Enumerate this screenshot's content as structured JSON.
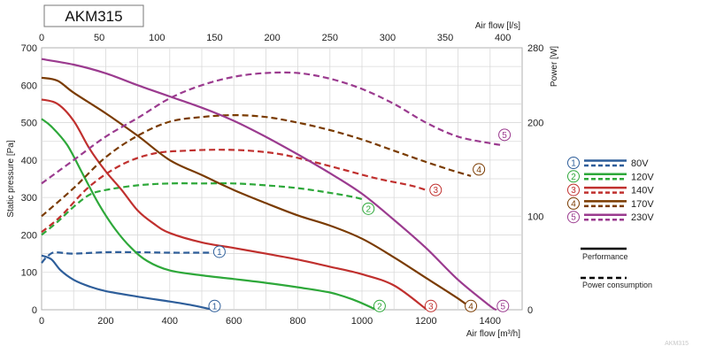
{
  "chart_data": {
    "type": "line",
    "title": "AKM315",
    "watermark": "AKM315",
    "xlabel": "Air flow [m³/h]",
    "x2label": "Air flow [l/s]",
    "ylabel": "Static pressure [Pa]",
    "y2label": "Power [W]",
    "xlim": [
      0,
      1500
    ],
    "ylim": [
      0,
      700
    ],
    "x2lim": [
      0,
      416.7
    ],
    "y2lim": [
      0,
      280
    ],
    "xticks": [
      "0",
      "200",
      "400",
      "600",
      "800",
      "1000",
      "1200",
      "1400"
    ],
    "yticks": [
      "0",
      "100",
      "200",
      "300",
      "400",
      "500",
      "600",
      "700"
    ],
    "x2ticks": [
      "0",
      "50",
      "100",
      "150",
      "200",
      "250",
      "300",
      "350",
      "400"
    ],
    "y2ticks": [
      "0",
      "100",
      "200",
      "280"
    ],
    "grid": true,
    "legend_position": "right",
    "legend": {
      "performance_label": "Performance",
      "power_label": "Power consumption"
    },
    "series": [
      {
        "id": "1",
        "name": "80V",
        "color": "#2e5e9a",
        "pressure": [
          [
            0,
            145
          ],
          [
            30,
            135
          ],
          [
            60,
            105
          ],
          [
            100,
            80
          ],
          [
            150,
            62
          ],
          [
            200,
            50
          ],
          [
            300,
            35
          ],
          [
            400,
            22
          ],
          [
            470,
            12
          ],
          [
            525,
            2
          ]
        ],
        "power": [
          [
            0,
            50
          ],
          [
            15,
            56
          ],
          [
            35,
            61
          ],
          [
            60,
            61
          ],
          [
            100,
            60
          ],
          [
            200,
            61.5
          ],
          [
            300,
            61.5
          ],
          [
            400,
            61
          ],
          [
            500,
            61
          ],
          [
            530,
            61
          ]
        ],
        "pressure_badge_x": 540,
        "pressure_badge_y": 10,
        "power_badge_x": 555,
        "power_badge_y": 62
      },
      {
        "id": "2",
        "name": "120V",
        "color": "#2ea83a",
        "pressure": [
          [
            0,
            510
          ],
          [
            30,
            490
          ],
          [
            80,
            440
          ],
          [
            130,
            360
          ],
          [
            180,
            280
          ],
          [
            230,
            215
          ],
          [
            280,
            165
          ],
          [
            330,
            130
          ],
          [
            400,
            105
          ],
          [
            500,
            92
          ],
          [
            600,
            82
          ],
          [
            700,
            72
          ],
          [
            800,
            60
          ],
          [
            900,
            46
          ],
          [
            970,
            28
          ],
          [
            1040,
            2
          ]
        ],
        "power": [
          [
            0,
            80
          ],
          [
            50,
            94
          ],
          [
            100,
            110
          ],
          [
            150,
            123
          ],
          [
            200,
            128
          ],
          [
            300,
            133
          ],
          [
            400,
            135
          ],
          [
            500,
            135
          ],
          [
            600,
            135
          ],
          [
            700,
            133
          ],
          [
            800,
            130
          ],
          [
            900,
            125
          ],
          [
            980,
            120
          ],
          [
            1010,
            117
          ]
        ],
        "pressure_badge_x": 1055,
        "pressure_badge_y": 10,
        "power_badge_x": 1020,
        "power_badge_y": 108
      },
      {
        "id": "3",
        "name": "140V",
        "color": "#c0302e",
        "pressure": [
          [
            0,
            562
          ],
          [
            50,
            550
          ],
          [
            100,
            505
          ],
          [
            150,
            430
          ],
          [
            200,
            370
          ],
          [
            250,
            320
          ],
          [
            300,
            265
          ],
          [
            350,
            230
          ],
          [
            400,
            205
          ],
          [
            500,
            180
          ],
          [
            600,
            165
          ],
          [
            700,
            150
          ],
          [
            800,
            134
          ],
          [
            900,
            115
          ],
          [
            1000,
            95
          ],
          [
            1100,
            65
          ],
          [
            1200,
            2
          ]
        ],
        "power": [
          [
            0,
            83
          ],
          [
            60,
            100
          ],
          [
            150,
            132
          ],
          [
            250,
            155
          ],
          [
            350,
            167
          ],
          [
            450,
            170
          ],
          [
            550,
            171
          ],
          [
            650,
            170
          ],
          [
            750,
            166
          ],
          [
            850,
            158
          ],
          [
            950,
            149
          ],
          [
            1050,
            140
          ],
          [
            1150,
            133
          ],
          [
            1200,
            128
          ]
        ],
        "pressure_badge_x": 1215,
        "pressure_badge_y": 10,
        "power_badge_x": 1230,
        "power_badge_y": 128
      },
      {
        "id": "4",
        "name": "170V",
        "color": "#7a3b00",
        "pressure": [
          [
            0,
            620
          ],
          [
            50,
            612
          ],
          [
            100,
            580
          ],
          [
            200,
            525
          ],
          [
            300,
            465
          ],
          [
            400,
            400
          ],
          [
            500,
            360
          ],
          [
            600,
            320
          ],
          [
            700,
            285
          ],
          [
            800,
            252
          ],
          [
            900,
            225
          ],
          [
            1000,
            190
          ],
          [
            1100,
            140
          ],
          [
            1200,
            85
          ],
          [
            1300,
            30
          ],
          [
            1345,
            2
          ]
        ],
        "power": [
          [
            0,
            100
          ],
          [
            100,
            130
          ],
          [
            200,
            163
          ],
          [
            300,
            186
          ],
          [
            400,
            201
          ],
          [
            500,
            206
          ],
          [
            600,
            208
          ],
          [
            700,
            206
          ],
          [
            800,
            200
          ],
          [
            900,
            192
          ],
          [
            1000,
            182
          ],
          [
            1100,
            170
          ],
          [
            1200,
            158
          ],
          [
            1280,
            149
          ],
          [
            1340,
            143
          ]
        ],
        "pressure_badge_x": 1340,
        "pressure_badge_y": 10,
        "power_badge_x": 1365,
        "power_badge_y": 150
      },
      {
        "id": "5",
        "name": "230V",
        "color": "#9b3b8f",
        "pressure": [
          [
            0,
            670
          ],
          [
            100,
            655
          ],
          [
            200,
            632
          ],
          [
            300,
            600
          ],
          [
            400,
            570
          ],
          [
            500,
            540
          ],
          [
            600,
            505
          ],
          [
            700,
            462
          ],
          [
            800,
            415
          ],
          [
            900,
            365
          ],
          [
            1000,
            310
          ],
          [
            1100,
            240
          ],
          [
            1200,
            165
          ],
          [
            1300,
            80
          ],
          [
            1400,
            10
          ],
          [
            1420,
            0
          ]
        ],
        "power": [
          [
            0,
            135
          ],
          [
            100,
            160
          ],
          [
            200,
            185
          ],
          [
            300,
            205
          ],
          [
            400,
            226
          ],
          [
            500,
            240
          ],
          [
            600,
            249
          ],
          [
            700,
            253
          ],
          [
            800,
            253
          ],
          [
            900,
            247
          ],
          [
            1000,
            236
          ],
          [
            1100,
            220
          ],
          [
            1200,
            200
          ],
          [
            1300,
            185
          ],
          [
            1400,
            178
          ],
          [
            1435,
            176
          ]
        ],
        "pressure_badge_x": 1440,
        "pressure_badge_y": 10,
        "power_badge_x": 1445,
        "power_badge_y": 187
      }
    ]
  }
}
